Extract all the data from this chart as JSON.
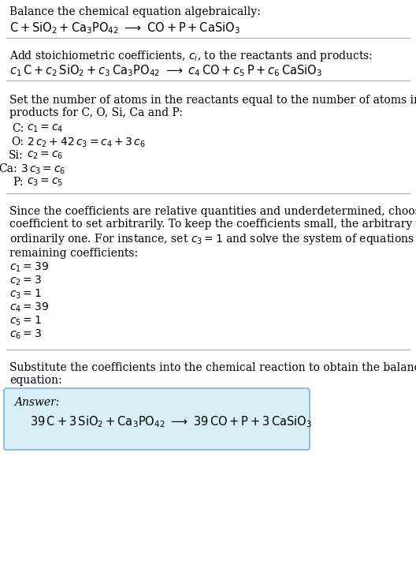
{
  "bg_color": "#ffffff",
  "answer_box_color": "#d9eef7",
  "answer_box_edge": "#7bb8d4",
  "line_color": "#aaaaaa",
  "fs": 10.0,
  "fs_eq": 10.5,
  "title": "Balance the chemical equation algebraically:",
  "eq1": "$\\mathrm{C + SiO_2 + Ca_3PO_{42}\\ \\longrightarrow\\ CO + P + CaSiO_3}$",
  "sec2_text": "Add stoichiometric coefficients, $c_i$, to the reactants and products:",
  "eq2": "$c_1\\,\\mathrm{C} + c_2\\,\\mathrm{SiO_2} + c_3\\,\\mathrm{Ca_3PO_{42}}\\ \\longrightarrow\\ c_4\\,\\mathrm{CO} + c_5\\,\\mathrm{P} + c_6\\,\\mathrm{CaSiO_3}$",
  "sec3_text": "Set the number of atoms in the reactants equal to the number of atoms in the\nproducts for C, O, Si, Ca and P:",
  "atom_labels": [
    "C:",
    "O:",
    "Si:",
    "Ca:",
    "P:"
  ],
  "atom_eqs": [
    "$c_1 = c_4$",
    "$2\\,c_2 + 42\\,c_3 = c_4 + 3\\,c_6$",
    "$c_2 = c_6$",
    "$3\\,c_3 = c_6$",
    "$c_3 = c_5$"
  ],
  "sec4_text": "Since the coefficients are relative quantities and underdetermined, choose a\ncoefficient to set arbitrarily. To keep the coefficients small, the arbitrary value is\nordinarily one. For instance, set $c_3 = 1$ and solve the system of equations for the\nremaining coefficients:",
  "sol_eqs": [
    "$c_1 = 39$",
    "$c_2 = 3$",
    "$c_3 = 1$",
    "$c_4 = 39$",
    "$c_5 = 1$",
    "$c_6 = 3$"
  ],
  "sec5_text": "Substitute the coefficients into the chemical reaction to obtain the balanced\nequation:",
  "answer_label": "Answer:",
  "answer_eq": "$39\\,\\mathrm{C} + 3\\,\\mathrm{SiO_2} + \\mathrm{Ca_3PO_{42}}\\ \\longrightarrow\\ 39\\,\\mathrm{CO} + \\mathrm{P} + 3\\,\\mathrm{CaSiO_3}$"
}
